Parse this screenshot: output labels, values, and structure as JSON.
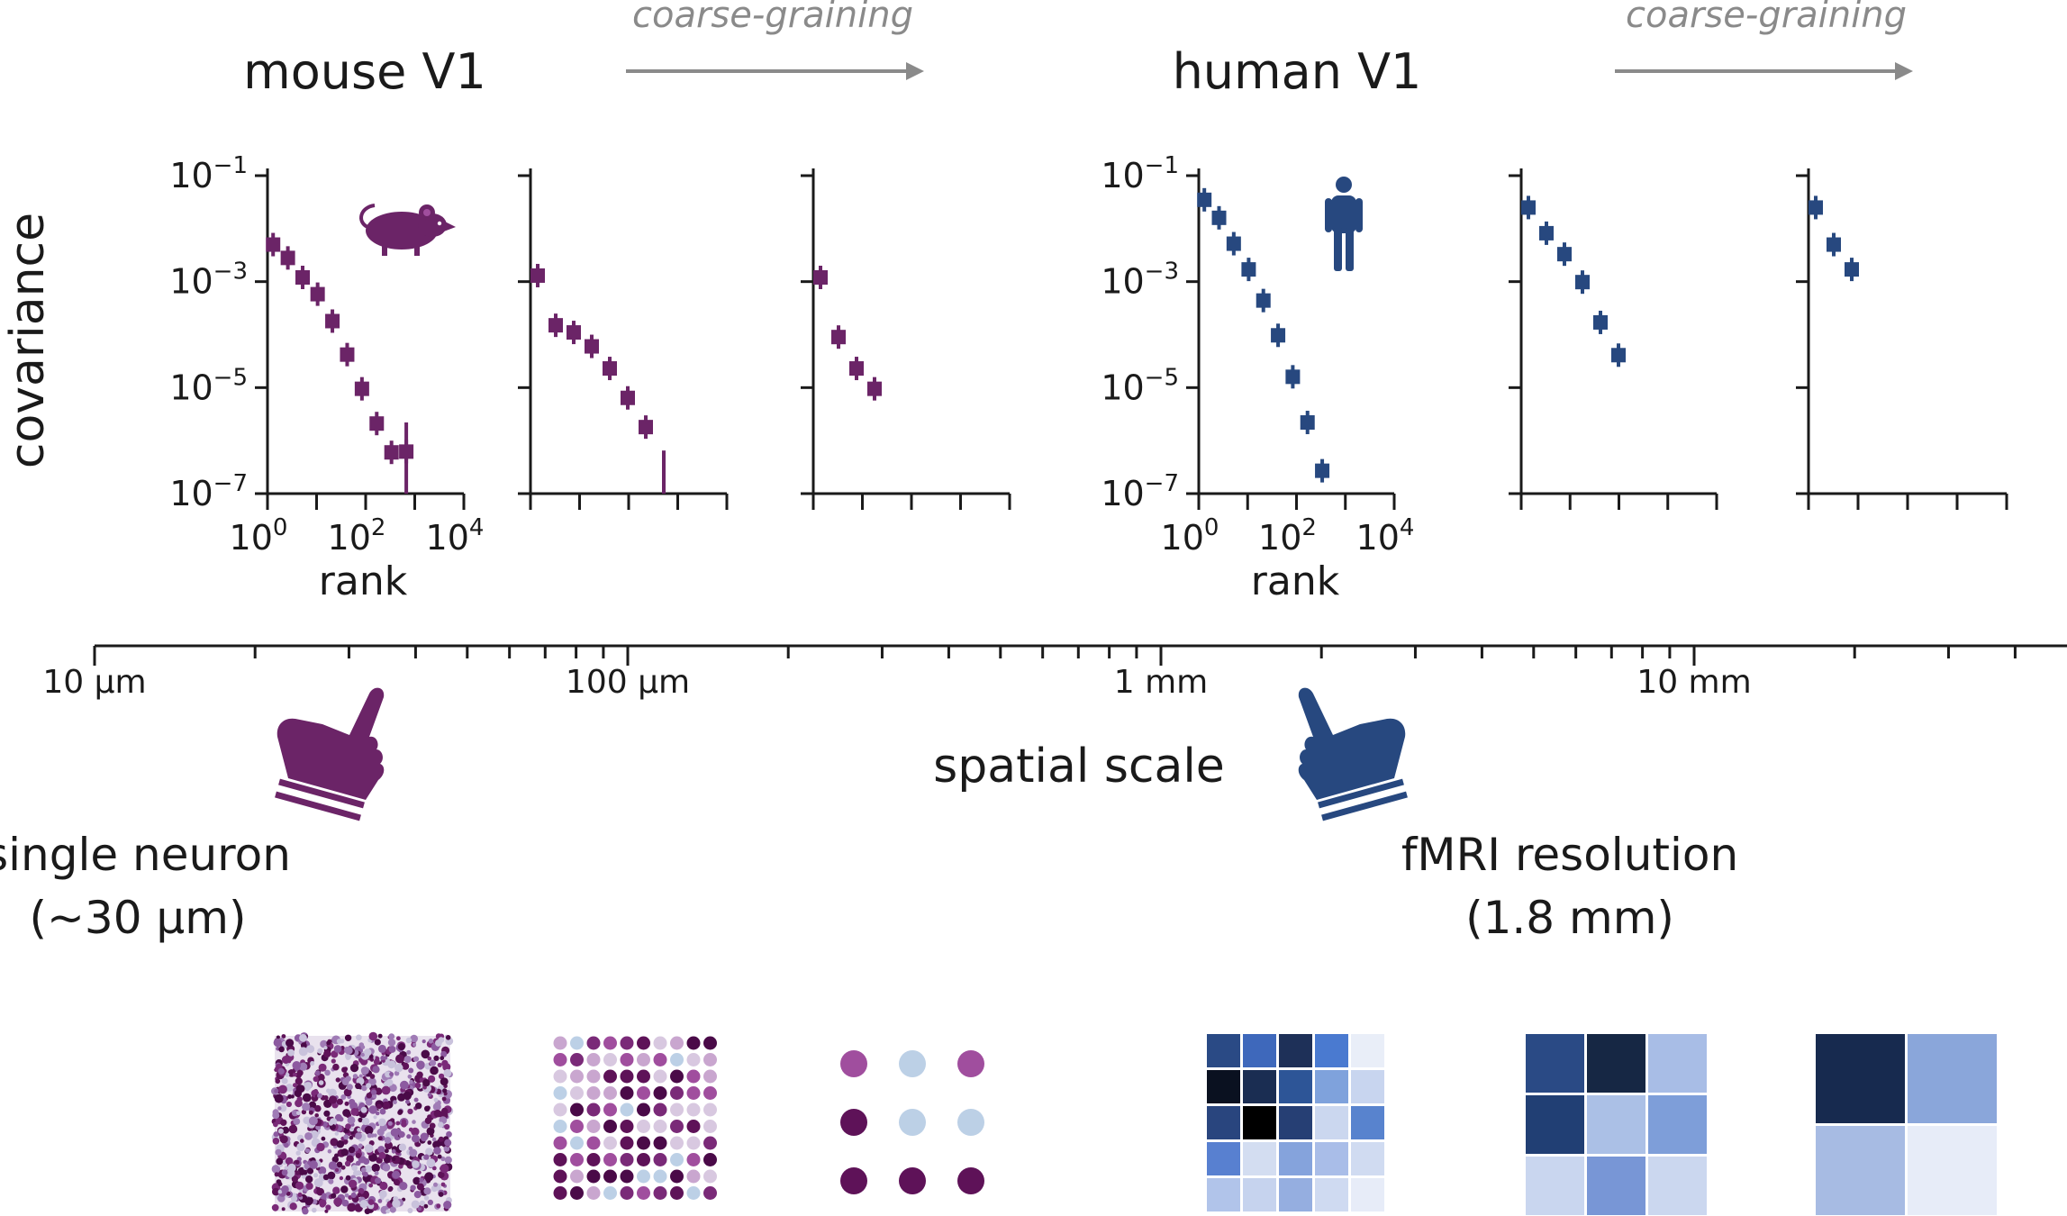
{
  "top": {
    "mouse_title": "mouse V1",
    "human_title": "human V1",
    "coarse_label": "coarse-graining"
  },
  "colors": {
    "mouse": "#6b2467",
    "human": "#27487f",
    "arrow": "#8a8a8a",
    "axis": "#1a1a1a"
  },
  "labels": {
    "ylabel": "covariance",
    "xlabel": "rank",
    "y_ticks": [
      {
        "base": "10",
        "exp": "−1"
      },
      {
        "base": "10",
        "exp": "−3"
      },
      {
        "base": "10",
        "exp": "−5"
      },
      {
        "base": "10",
        "exp": "−7"
      }
    ],
    "x_ticks": [
      {
        "base": "10",
        "exp": "0"
      },
      {
        "base": "10",
        "exp": "2"
      },
      {
        "base": "10",
        "exp": "4"
      }
    ]
  },
  "chart_data": [
    {
      "type": "scatter",
      "species": "mouse",
      "panel": 1,
      "xlim": [
        1,
        10000
      ],
      "ylim": [
        1e-07,
        0.1
      ],
      "x_scale": "log",
      "y_scale": "log",
      "points": [
        {
          "x": 1.3,
          "y": 0.005
        },
        {
          "x": 2.6,
          "y": 0.0028
        },
        {
          "x": 5.2,
          "y": 0.0012
        },
        {
          "x": 10.5,
          "y": 0.00058
        },
        {
          "x": 21,
          "y": 0.00018
        },
        {
          "x": 42,
          "y": 4.2e-05
        },
        {
          "x": 84,
          "y": 9.5e-06
        },
        {
          "x": 168,
          "y": 2.1e-06
        },
        {
          "x": 336,
          "y": 6e-07
        },
        {
          "x": 672,
          "y": 6.2e-07,
          "err": [
            1e-07,
            2.2e-06
          ]
        }
      ]
    },
    {
      "type": "scatter",
      "species": "mouse",
      "panel": 2,
      "points": [
        {
          "i": 0,
          "y": 0.0013
        },
        {
          "i": 1,
          "y": 0.00015
        },
        {
          "i": 2,
          "y": 0.00011
        },
        {
          "i": 3,
          "y": 6e-05
        },
        {
          "i": 4,
          "y": 2.3e-05
        },
        {
          "i": 5,
          "y": 6.4e-06
        },
        {
          "i": 6,
          "y": 1.8e-06
        },
        {
          "i": 7,
          "y": null,
          "err": [
            1e-07,
            6.5e-07
          ]
        }
      ]
    },
    {
      "type": "scatter",
      "species": "mouse",
      "panel": 3,
      "points": [
        {
          "i": 0,
          "y": 0.0012
        },
        {
          "i": 1,
          "y": 9e-05
        },
        {
          "i": 2,
          "y": 2.3e-05
        },
        {
          "i": 3,
          "y": 9.5e-06
        }
      ]
    },
    {
      "type": "scatter",
      "species": "human",
      "panel": 1,
      "xlim": [
        1,
        10000
      ],
      "ylim": [
        1e-07,
        0.1
      ],
      "x_scale": "log",
      "y_scale": "log",
      "points": [
        {
          "x": 1.3,
          "y": 0.035
        },
        {
          "x": 2.6,
          "y": 0.016
        },
        {
          "x": 5.2,
          "y": 0.0052
        },
        {
          "x": 10.5,
          "y": 0.0017
        },
        {
          "x": 21,
          "y": 0.00044
        },
        {
          "x": 42,
          "y": 9.7e-05
        },
        {
          "x": 84,
          "y": 1.6e-05
        },
        {
          "x": 168,
          "y": 2.2e-06
        },
        {
          "x": 336,
          "y": 2.7e-07
        }
      ]
    },
    {
      "type": "scatter",
      "species": "human",
      "panel": 2,
      "points": [
        {
          "i": 0,
          "y": 0.025
        },
        {
          "i": 1,
          "y": 0.0082
        },
        {
          "i": 2,
          "y": 0.0033
        },
        {
          "i": 3,
          "y": 0.00098
        },
        {
          "i": 4,
          "y": 0.00017
        },
        {
          "i": 5,
          "y": 4.1e-05
        }
      ]
    },
    {
      "type": "scatter",
      "species": "human",
      "panel": 3,
      "points": [
        {
          "i": 0,
          "y": 0.025
        },
        {
          "i": 1,
          "y": 0.005
        },
        {
          "i": 2,
          "y": 0.0017
        }
      ]
    }
  ],
  "scale_axis": {
    "ticks": [
      "10 μm",
      "100 μm",
      "1 mm",
      "10 mm"
    ],
    "label": "spatial scale"
  },
  "notes": {
    "single_neuron": "single neuron",
    "single_neuron_sub": "(~30 μm)",
    "fmri": "fMRI resolution",
    "fmri_sub": "(1.8 mm)"
  },
  "icons": {
    "mouse": "mouse-icon",
    "human": "person-icon",
    "pointer": "pointing-hand-icon"
  },
  "thumbnails": {
    "mouse_dots_9": [
      "#a04e9e",
      "#bcd0e6",
      "#a04e9e",
      "#5e1258",
      "#bcd0e6",
      "#bcd0e6",
      "#5e1258",
      "#5e1258",
      "#5e1258"
    ],
    "human_grid_4": [
      "#172a4f",
      "#8aa6da",
      "#a7bbe3",
      "#e7ecf8"
    ],
    "human_grid_9": [
      "#2a4a85",
      "#162744",
      "#a8bde6",
      "#213f74",
      "#abc0e6",
      "#7e9ed9",
      "#c9d6ef",
      "#7896d6",
      "#cbd7ef"
    ],
    "human_grid_25": [
      "#2a4a85",
      "#3e68bb",
      "#1e3058",
      "#4a7ad0",
      "#e9eef8",
      "#0a1120",
      "#1a2d52",
      "#2d5597",
      "#7fa2dc",
      "#c8d5ef",
      "#29457e",
      "#000000",
      "#263f74",
      "#cbd7ef",
      "#5883ce",
      "#5880d0",
      "#d3ddf1",
      "#85a3dc",
      "#a9bde8",
      "#d0dbf1",
      "#b1c4ea",
      "#c6d3ee",
      "#95aee0",
      "#cfdaf1",
      "#e7ecf8"
    ]
  }
}
